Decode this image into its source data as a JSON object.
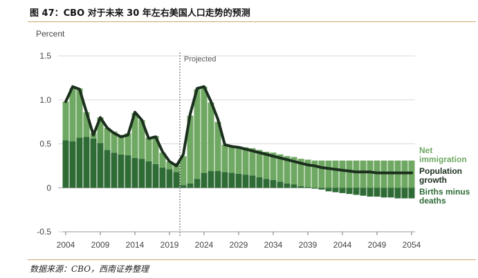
{
  "title": "图 47：CBO 对于未来 30 年左右美国人口走势的预测",
  "source": "数据来源：CBO，西南证券整理",
  "colors": {
    "net_immigration": "#6fa862",
    "births_minus_deaths": "#2e6b35",
    "population_growth": "#1b2f1d",
    "bar_outline": "#ffffff",
    "rule": "#c9a66b"
  },
  "chart_data": {
    "type": "bar",
    "ylabel": "Percent",
    "ylim": [
      -0.5,
      1.5
    ],
    "yticks": [
      "1.5",
      "1.0",
      "0.5",
      "0",
      "-0.5"
    ],
    "yticks_values": [
      1.5,
      1.0,
      0.5,
      0,
      -0.5
    ],
    "xticks": [
      "2004",
      "2009",
      "2014",
      "2019",
      "2024",
      "2029",
      "2034",
      "2039",
      "2044",
      "2049",
      "2054"
    ],
    "projected_label": "Projected",
    "projected_after_year": 2020,
    "years": [
      2004,
      2005,
      2006,
      2007,
      2008,
      2009,
      2010,
      2011,
      2012,
      2013,
      2014,
      2015,
      2016,
      2017,
      2018,
      2019,
      2020,
      2021,
      2022,
      2023,
      2024,
      2025,
      2026,
      2027,
      2028,
      2029,
      2030,
      2031,
      2032,
      2033,
      2034,
      2035,
      2036,
      2037,
      2038,
      2039,
      2040,
      2041,
      2042,
      2043,
      2044,
      2045,
      2046,
      2047,
      2048,
      2049,
      2050,
      2051,
      2052,
      2053,
      2054
    ],
    "series": [
      {
        "name": "Births minus deaths",
        "values": [
          0.54,
          0.53,
          0.57,
          0.58,
          0.56,
          0.51,
          0.43,
          0.4,
          0.38,
          0.37,
          0.34,
          0.33,
          0.3,
          0.27,
          0.23,
          0.21,
          0.18,
          0.03,
          0.05,
          0.1,
          0.17,
          0.19,
          0.19,
          0.18,
          0.17,
          0.16,
          0.15,
          0.14,
          0.12,
          0.1,
          0.09,
          0.07,
          0.05,
          0.04,
          0.02,
          0.01,
          -0.01,
          -0.02,
          -0.04,
          -0.05,
          -0.06,
          -0.07,
          -0.08,
          -0.09,
          -0.1,
          -0.1,
          -0.11,
          -0.11,
          -0.12,
          -0.12,
          -0.12
        ]
      },
      {
        "name": "Net immigration",
        "values": [
          0.44,
          0.6,
          0.56,
          0.28,
          0.06,
          0.29,
          0.25,
          0.24,
          0.22,
          0.25,
          0.51,
          0.44,
          0.27,
          0.32,
          0.17,
          0.09,
          0.1,
          0.33,
          0.77,
          1.02,
          0.98,
          0.78,
          0.56,
          0.31,
          0.31,
          0.31,
          0.31,
          0.31,
          0.31,
          0.31,
          0.31,
          0.31,
          0.31,
          0.31,
          0.31,
          0.31,
          0.31,
          0.31,
          0.31,
          0.31,
          0.31,
          0.31,
          0.31,
          0.31,
          0.31,
          0.31,
          0.31,
          0.31,
          0.31,
          0.31,
          0.31
        ]
      },
      {
        "name": "Population growth",
        "values": [
          0.98,
          1.15,
          1.12,
          0.86,
          0.6,
          0.8,
          0.68,
          0.62,
          0.58,
          0.6,
          0.86,
          0.77,
          0.56,
          0.58,
          0.41,
          0.3,
          0.25,
          0.38,
          0.84,
          1.13,
          1.15,
          0.98,
          0.78,
          0.49,
          0.47,
          0.46,
          0.44,
          0.42,
          0.4,
          0.38,
          0.36,
          0.34,
          0.32,
          0.3,
          0.28,
          0.26,
          0.25,
          0.23,
          0.22,
          0.21,
          0.2,
          0.19,
          0.18,
          0.18,
          0.18,
          0.17,
          0.17,
          0.17,
          0.17,
          0.17,
          0.17
        ]
      }
    ],
    "legend": [
      {
        "label_lines": [
          "Net",
          "immigration"
        ],
        "series": "Net immigration"
      },
      {
        "label_lines": [
          "Population",
          "growth"
        ],
        "series": "Population growth"
      },
      {
        "label_lines": [
          "Births minus",
          "deaths"
        ],
        "series": "Births minus deaths"
      }
    ],
    "legend_position": "right"
  }
}
